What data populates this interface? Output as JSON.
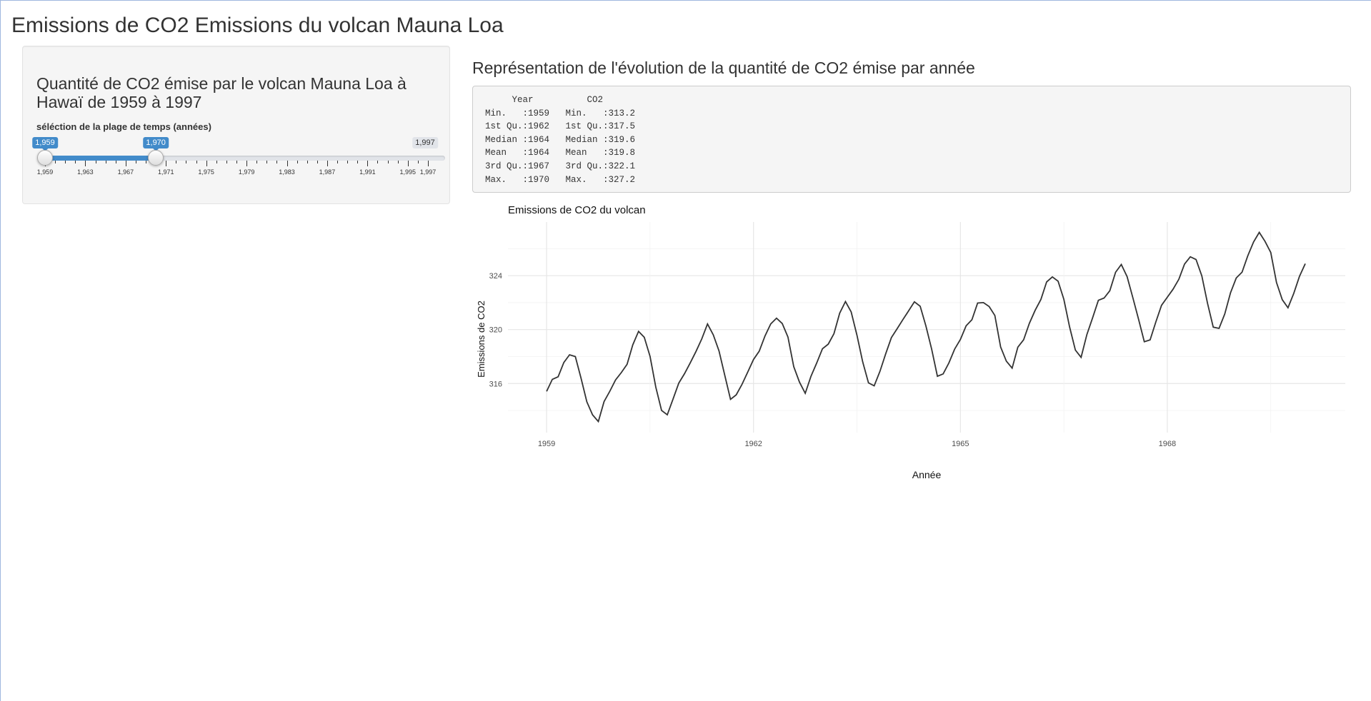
{
  "page": {
    "title": "Emissions de CO2 Emissions du volcan Mauna Loa"
  },
  "sidebar": {
    "heading": "Quantité de CO2 émise par le volcan Mauna Loa à Hawaï de 1959 à 1997",
    "slider": {
      "label": "séléction de la plage de temps (années)",
      "min": 1959,
      "max": 1997,
      "from": 1959,
      "to": 1970,
      "from_label": "1,959",
      "to_label": "1,970",
      "max_label": "1,997",
      "tick_labels": [
        "1,959",
        "1,963",
        "1,967",
        "1,971",
        "1,975",
        "1,979",
        "1,983",
        "1,987",
        "1,991",
        "1,995",
        "1,997"
      ],
      "accent_color": "#428bca"
    }
  },
  "main": {
    "heading": "Représentation de l'évolution de la quantité de CO2 émise par année",
    "summary": {
      "header": "     Year          CO2     ",
      "rows": [
        "Min.   :1959   Min.   :313.2  ",
        "1st Qu.:1962   1st Qu.:317.5  ",
        "Median :1964   Median :319.6  ",
        "Mean   :1964   Mean   :319.8  ",
        "3rd Qu.:1967   3rd Qu.:322.1  ",
        "Max.   :1970   Max.   :327.2  "
      ]
    }
  },
  "chart_data": {
    "type": "line",
    "title": "Emissions de CO2 du volcan",
    "xlabel": "Année",
    "ylabel": "Emissions de CO2",
    "x_ticks": [
      1959,
      1962,
      1965,
      1968
    ],
    "y_ticks": [
      316,
      320,
      324
    ],
    "xlim": [
      1958.44,
      1970.58
    ],
    "ylim": [
      312.36,
      327.98
    ],
    "grid": true,
    "line_color": "#333333",
    "series": [
      {
        "start": 1959,
        "step": 0.08333,
        "values": [
          315.42,
          316.31,
          316.5,
          317.56,
          318.13,
          318.0,
          316.39,
          314.65,
          313.68,
          313.18,
          314.66,
          315.43,
          316.27,
          316.81,
          317.42,
          318.87,
          319.87,
          319.43,
          318.01,
          315.74,
          314.0,
          313.68,
          314.84,
          316.03,
          316.73,
          317.54,
          318.38,
          319.31,
          320.42,
          319.61,
          318.42,
          316.63,
          314.83,
          315.16,
          315.94,
          316.85,
          317.78,
          318.4,
          319.53,
          320.42,
          320.85,
          320.45,
          319.45,
          317.25,
          316.11,
          315.27,
          316.53,
          317.53,
          318.58,
          318.92,
          319.7,
          321.22,
          322.08,
          321.31,
          319.58,
          317.61,
          316.05,
          315.83,
          316.91,
          318.2,
          319.41,
          320.07,
          320.74,
          321.4,
          322.06,
          321.73,
          320.27,
          318.54,
          316.54,
          316.71,
          317.53,
          318.55,
          319.27,
          320.28,
          320.73,
          321.97,
          322.0,
          321.71,
          321.05,
          318.71,
          317.66,
          317.14,
          318.7,
          319.25,
          320.46,
          321.43,
          322.23,
          323.54,
          323.91,
          323.59,
          322.24,
          320.2,
          318.48,
          317.94,
          319.63,
          320.87,
          322.17,
          322.34,
          322.88,
          324.25,
          324.83,
          323.93,
          322.38,
          320.76,
          319.1,
          319.24,
          320.56,
          321.8,
          322.4,
          322.99,
          323.73,
          324.86,
          325.4,
          325.2,
          323.98,
          321.95,
          320.18,
          320.09,
          321.16,
          322.74,
          323.83,
          324.26,
          325.47,
          326.5,
          327.21,
          326.54,
          325.72,
          323.5,
          322.22,
          321.62,
          322.69,
          323.95,
          324.89
        ]
      }
    ]
  }
}
